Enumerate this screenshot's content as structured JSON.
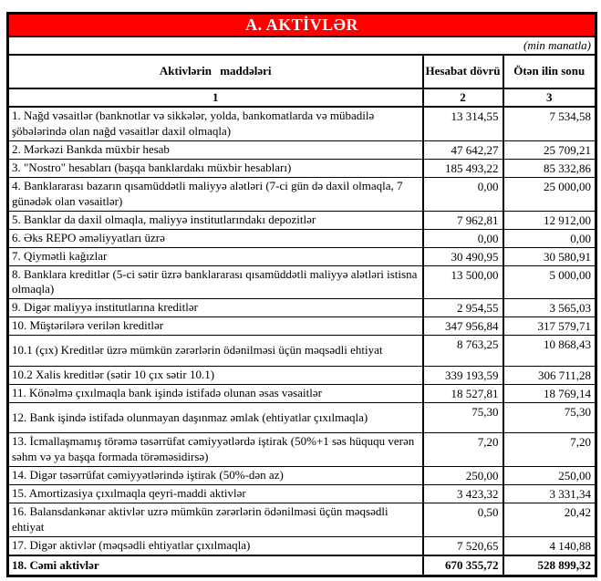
{
  "title": "A. AKTİVLƏR",
  "unit_note": "(min manatla)",
  "colors": {
    "banner_bg": "#ff0000",
    "banner_text": "#ffffff",
    "border": "#000000"
  },
  "table": {
    "columns": {
      "items": "Aktivlərin maddələri",
      "current": "Hesabat dövrü",
      "previous": "Ötən ilin sonu"
    },
    "column_numbers": [
      "1",
      "2",
      "3"
    ],
    "rows": [
      {
        "label": "1. Nağd vəsaitlər (banknotlar və sikkələr, yolda, bankomatlarda və mübadilə şöbələrində olan nağd vəsaitlər daxil olmaqla)",
        "current": "13 314,55",
        "previous": "7 534,58"
      },
      {
        "label": "2. Mərkəzi Bankda müxbir hesab",
        "current": "47 642,27",
        "previous": "25 709,21"
      },
      {
        "label": "3. \"Nostro\" hesabları (başqa banklardakı müxbir hesabları)",
        "current": "185 493,22",
        "previous": "85 332,86"
      },
      {
        "label": "4. Banklararası bazarın qısamüddətli maliyyə alətləri (7-ci gün də daxil olmaqla, 7 günədək olan vəsaitlər)",
        "current": "0,00",
        "previous": "25 000,00"
      },
      {
        "label": "5. Banklar da daxil olmaqla, maliyyə institutlarındakı depozitlər",
        "current": "7 962,81",
        "previous": "12 912,00"
      },
      {
        "label": "6. Əks REPO əməliyyatları üzrə",
        "current": "0,00",
        "previous": "0,00"
      },
      {
        "label": "7. Qiymətli kağızlar",
        "current": "30 490,95",
        "previous": "30 580,91"
      },
      {
        "label": "8. Banklara kreditlər (5-ci sətir üzrə banklararası qısamüddətli maliyyə alətləri istisna olmaqla)",
        "current": "13 500,00",
        "previous": "5 000,00"
      },
      {
        "label": "9. Digər maliyyə institutlarına kreditlər",
        "current": "2 954,55",
        "previous": "3 565,03"
      },
      {
        "label": "10. Müştərilərə verilən kreditlər",
        "current": "347 956,84",
        "previous": "317 579,71"
      },
      {
        "label": "10.1 (çıx) Kreditlər üzrə mümkün zərərlərin ödənilməsi üçün məqsədli ehtiyat",
        "current": "8 763,25",
        "previous": "10 868,43"
      },
      {
        "label": "10.2 Xalis kreditlər (sətir 10 çıx sətir 10.1)",
        "current": "339 193,59",
        "previous": "306 711,28"
      },
      {
        "label": "11. Könəlmə çıxılmaqla bank işində istifadə olunan əsas vəsaitlər",
        "current": "18 527,81",
        "previous": "18 769,14"
      },
      {
        "label": "12. Bank işində istifadə olunmayan daşınmaz əmlak (ehtiyatlar çıxılmaqla)",
        "current": "75,30",
        "previous": "75,30"
      },
      {
        "label": "13. İcmallaşmamış törəmə təsərrüfat cəmiyyətlərdə iştirak (50%+1 səs hüququ verən səhm və ya başqa formada törəməsidirsə)",
        "current": "7,20",
        "previous": "7,20"
      },
      {
        "label": "14. Digər təsərrüfat cəmiyyətlərində iştirak (50%-dən az)",
        "current": "250,00",
        "previous": "250,00"
      },
      {
        "label": "15. Amortizasiya çıxılmaqla qeyri-maddi aktivlər",
        "current": "3 423,32",
        "previous": "3 331,34"
      },
      {
        "label": "16. Balansdankənar aktivlər uzrə mümkün zərərlərin ödənilməsi üçün məqsədli ehtiyat",
        "current": "0,50",
        "previous": "20,42"
      },
      {
        "label": "17. Digər aktivlər (məqsədli ehtiyatlar çıxılmaqla)",
        "current": "7 520,65",
        "previous": "4 140,88"
      },
      {
        "label": "18. Cəmi aktivlər",
        "current": "670 355,72",
        "previous": "528 899,32",
        "is_total": true
      }
    ]
  }
}
